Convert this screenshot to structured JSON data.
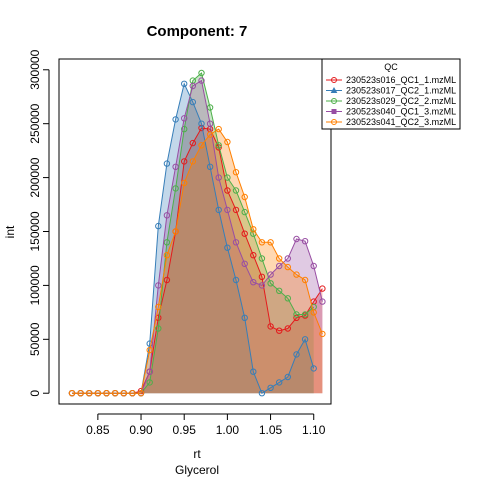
{
  "chart_data": {
    "type": "area",
    "title": "Component: 7",
    "xlabel": "rt",
    "xlabel2": "Glycerol",
    "ylabel": "int",
    "xlim": [
      0.805,
      1.12
    ],
    "ylim": [
      -10000,
      310000
    ],
    "x_ticks": [
      0.85,
      0.9,
      0.95,
      1.0,
      1.05,
      1.1
    ],
    "x_tick_labels": [
      "0.85",
      "0.90",
      "0.95",
      "1.00",
      "1.05",
      "1.10"
    ],
    "y_ticks": [
      0,
      50000,
      100000,
      150000,
      200000,
      250000,
      300000
    ],
    "y_tick_labels": [
      "0",
      "50000",
      "100000",
      "150000",
      "200000",
      "250000",
      "300000"
    ],
    "legend": {
      "title": "QC",
      "position": "top-right"
    },
    "series": [
      {
        "name": "230523s016_QC1_1.mzML",
        "color": "#e41a1c",
        "marker": "circle",
        "points": [
          [
            0.82,
            0
          ],
          [
            0.83,
            0
          ],
          [
            0.84,
            0
          ],
          [
            0.85,
            0
          ],
          [
            0.86,
            0
          ],
          [
            0.87,
            0
          ],
          [
            0.88,
            0
          ],
          [
            0.89,
            0
          ],
          [
            0.9,
            2000
          ],
          [
            0.91,
            20000
          ],
          [
            0.92,
            70000
          ],
          [
            0.93,
            105000
          ],
          [
            0.94,
            150000
          ],
          [
            0.95,
            215000
          ],
          [
            0.96,
            232000
          ],
          [
            0.97,
            246000
          ],
          [
            0.98,
            245000
          ],
          [
            0.99,
            228000
          ],
          [
            1.0,
            188000
          ],
          [
            1.01,
            170000
          ],
          [
            1.02,
            148000
          ],
          [
            1.03,
            128000
          ],
          [
            1.04,
            108000
          ],
          [
            1.05,
            62000
          ],
          [
            1.06,
            58000
          ],
          [
            1.07,
            60000
          ],
          [
            1.08,
            70000
          ],
          [
            1.09,
            72000
          ],
          [
            1.1,
            85000
          ],
          [
            1.11,
            97000
          ]
        ]
      },
      {
        "name": "230523s017_QC2_1.mzML",
        "color": "#377eb8",
        "marker": "triangle",
        "points": [
          [
            0.82,
            0
          ],
          [
            0.83,
            0
          ],
          [
            0.84,
            0
          ],
          [
            0.85,
            0
          ],
          [
            0.86,
            0
          ],
          [
            0.87,
            0
          ],
          [
            0.88,
            0
          ],
          [
            0.89,
            0
          ],
          [
            0.9,
            0
          ],
          [
            0.91,
            46000
          ],
          [
            0.92,
            155000
          ],
          [
            0.93,
            213000
          ],
          [
            0.94,
            254000
          ],
          [
            0.95,
            287000
          ],
          [
            0.96,
            270000
          ],
          [
            0.97,
            250000
          ],
          [
            0.98,
            210000
          ],
          [
            0.99,
            170000
          ],
          [
            1.0,
            135000
          ],
          [
            1.01,
            105000
          ],
          [
            1.02,
            70000
          ],
          [
            1.03,
            20000
          ],
          [
            1.04,
            0
          ],
          [
            1.05,
            5000
          ],
          [
            1.06,
            10000
          ],
          [
            1.07,
            15000
          ],
          [
            1.08,
            36000
          ],
          [
            1.09,
            50000
          ],
          [
            1.1,
            23000
          ]
        ]
      },
      {
        "name": "230523s029_QC2_2.mzML",
        "color": "#4daf4a",
        "marker": "circle",
        "points": [
          [
            0.82,
            0
          ],
          [
            0.83,
            0
          ],
          [
            0.84,
            0
          ],
          [
            0.85,
            0
          ],
          [
            0.86,
            0
          ],
          [
            0.87,
            0
          ],
          [
            0.88,
            0
          ],
          [
            0.89,
            0
          ],
          [
            0.9,
            0
          ],
          [
            0.91,
            10000
          ],
          [
            0.92,
            60000
          ],
          [
            0.93,
            140000
          ],
          [
            0.94,
            190000
          ],
          [
            0.95,
            245000
          ],
          [
            0.96,
            290000
          ],
          [
            0.97,
            297000
          ],
          [
            0.98,
            265000
          ],
          [
            0.99,
            230000
          ],
          [
            1.0,
            200000
          ],
          [
            1.01,
            188000
          ],
          [
            1.02,
            168000
          ],
          [
            1.03,
            148000
          ],
          [
            1.04,
            125000
          ],
          [
            1.05,
            102000
          ],
          [
            1.06,
            95000
          ],
          [
            1.07,
            88000
          ],
          [
            1.08,
            73000
          ],
          [
            1.09,
            73000
          ],
          [
            1.1,
            80000
          ]
        ]
      },
      {
        "name": "230523s040_QC1_3.mzML",
        "color": "#984ea3",
        "marker": "square",
        "points": [
          [
            0.82,
            0
          ],
          [
            0.83,
            0
          ],
          [
            0.84,
            0
          ],
          [
            0.85,
            0
          ],
          [
            0.86,
            0
          ],
          [
            0.87,
            0
          ],
          [
            0.88,
            0
          ],
          [
            0.89,
            0
          ],
          [
            0.9,
            0
          ],
          [
            0.91,
            20000
          ],
          [
            0.92,
            100000
          ],
          [
            0.93,
            165000
          ],
          [
            0.94,
            210000
          ],
          [
            0.95,
            255000
          ],
          [
            0.96,
            285000
          ],
          [
            0.97,
            290000
          ],
          [
            0.98,
            250000
          ],
          [
            0.99,
            200000
          ],
          [
            1.0,
            170000
          ],
          [
            1.01,
            140000
          ],
          [
            1.02,
            120000
          ],
          [
            1.03,
            103000
          ],
          [
            1.04,
            100000
          ],
          [
            1.05,
            110000
          ],
          [
            1.06,
            118000
          ],
          [
            1.07,
            125000
          ],
          [
            1.08,
            143000
          ],
          [
            1.09,
            141000
          ],
          [
            1.1,
            118000
          ],
          [
            1.11,
            85000
          ]
        ]
      },
      {
        "name": "230523s041_QC2_3.mzML",
        "color": "#ff7f00",
        "marker": "circle",
        "points": [
          [
            0.82,
            0
          ],
          [
            0.83,
            0
          ],
          [
            0.84,
            0
          ],
          [
            0.85,
            0
          ],
          [
            0.86,
            0
          ],
          [
            0.87,
            0
          ],
          [
            0.88,
            0
          ],
          [
            0.89,
            0
          ],
          [
            0.9,
            0
          ],
          [
            0.91,
            40000
          ],
          [
            0.92,
            80000
          ],
          [
            0.93,
            128000
          ],
          [
            0.94,
            150000
          ],
          [
            0.95,
            195000
          ],
          [
            0.96,
            215000
          ],
          [
            0.97,
            230000
          ],
          [
            0.98,
            240000
          ],
          [
            0.99,
            245000
          ],
          [
            1.0,
            233000
          ],
          [
            1.01,
            205000
          ],
          [
            1.02,
            182000
          ],
          [
            1.03,
            152000
          ],
          [
            1.04,
            140000
          ],
          [
            1.05,
            140000
          ],
          [
            1.06,
            125000
          ],
          [
            1.07,
            117000
          ],
          [
            1.08,
            110000
          ],
          [
            1.09,
            105000
          ],
          [
            1.1,
            75000
          ],
          [
            1.11,
            55000
          ]
        ]
      }
    ]
  }
}
